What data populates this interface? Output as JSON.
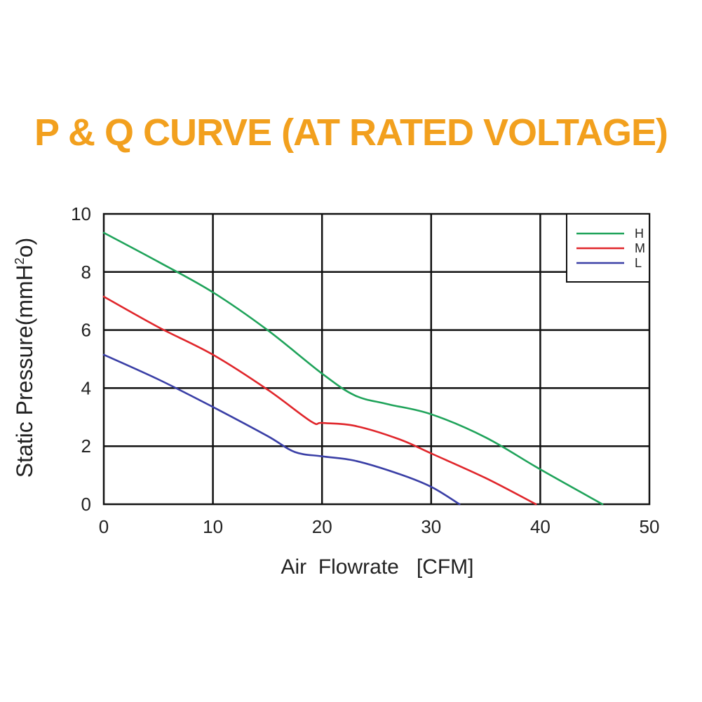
{
  "title": "P & Q CURVE (AT RATED VOLTAGE)",
  "colors": {
    "title": "#f2a01e",
    "grid": "#111111",
    "H": "#1fa35a",
    "M": "#e0262b",
    "L": "#3a3fa6"
  },
  "chart_data": {
    "type": "line",
    "title": "P & Q CURVE (AT RATED VOLTAGE)",
    "xlabel": "Air  Flowrate   [CFM]",
    "ylabel_main": "Static Pressure(mmH",
    "ylabel_sup": "2",
    "ylabel_tail": "o)",
    "xlim": [
      0,
      50
    ],
    "ylim": [
      0,
      10
    ],
    "x_ticks": [
      "0",
      "10",
      "20",
      "30",
      "40",
      "50"
    ],
    "y_ticks": [
      "0",
      "2",
      "4",
      "6",
      "8",
      "10"
    ],
    "grid": true,
    "legend_position": "top-right",
    "series": [
      {
        "name": "H",
        "color": "#1fa35a",
        "points": [
          [
            0,
            9.35
          ],
          [
            5,
            8.35
          ],
          [
            10,
            7.3
          ],
          [
            15,
            6.0
          ],
          [
            20,
            4.5
          ],
          [
            23,
            3.75
          ],
          [
            26,
            3.45
          ],
          [
            30,
            3.1
          ],
          [
            35,
            2.3
          ],
          [
            40,
            1.2
          ],
          [
            45.7,
            0.0
          ]
        ]
      },
      {
        "name": "M",
        "color": "#e0262b",
        "points": [
          [
            0,
            7.15
          ],
          [
            5,
            6.1
          ],
          [
            10,
            5.15
          ],
          [
            15,
            3.95
          ],
          [
            19,
            2.85
          ],
          [
            20,
            2.8
          ],
          [
            23,
            2.7
          ],
          [
            27,
            2.25
          ],
          [
            30,
            1.75
          ],
          [
            35,
            0.9
          ],
          [
            39.6,
            0.0
          ]
        ]
      },
      {
        "name": "L",
        "color": "#3a3fa6",
        "points": [
          [
            0,
            5.15
          ],
          [
            5,
            4.3
          ],
          [
            10,
            3.35
          ],
          [
            15,
            2.35
          ],
          [
            17.5,
            1.8
          ],
          [
            20,
            1.65
          ],
          [
            23,
            1.5
          ],
          [
            27,
            1.05
          ],
          [
            30,
            0.6
          ],
          [
            32.6,
            0.0
          ]
        ]
      }
    ]
  }
}
